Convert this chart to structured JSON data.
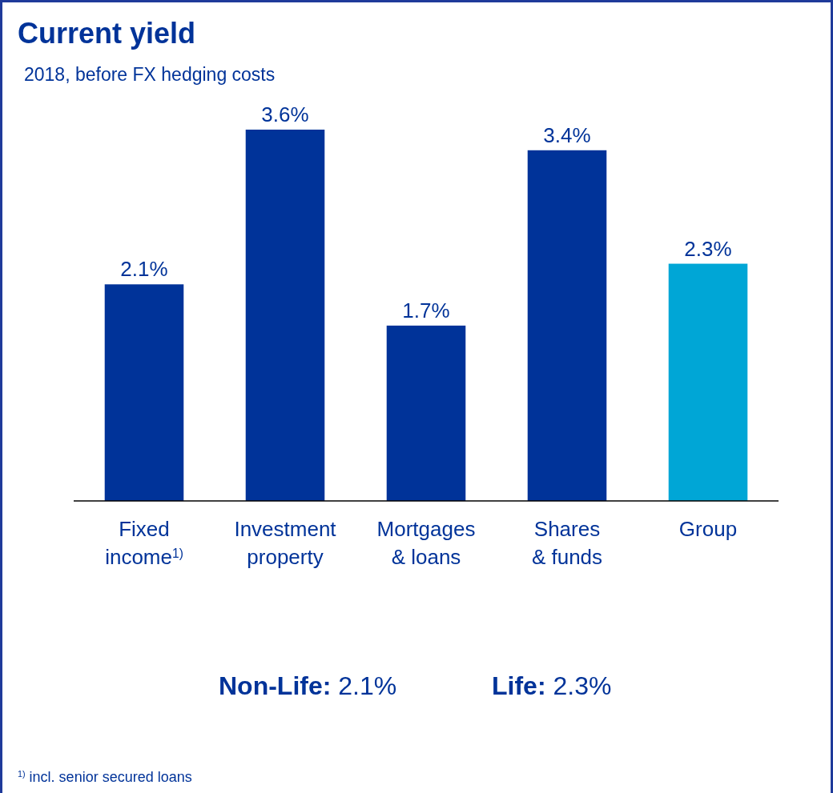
{
  "chart_data": {
    "type": "bar",
    "title": "Current yield",
    "subtitle": "2018, before FX hedging costs",
    "categories": [
      "Fixed income$^{1)}$",
      "Investment property",
      "Mortgages & loans",
      "Shares & funds",
      "Group"
    ],
    "values": [
      2.1,
      3.6,
      1.7,
      3.4,
      2.3
    ],
    "colors": [
      "#003399",
      "#003399",
      "#003399",
      "#003399",
      "#00a6d6"
    ],
    "value_labels": [
      "2.1%",
      "3.6%",
      "1.7%",
      "3.4%",
      "2.3%"
    ],
    "annotations": [
      "Non-Life: 2.1%",
      "Life: 2.3%",
      "$^{1)}$ incl. senior secured loans"
    ]
  }
}
